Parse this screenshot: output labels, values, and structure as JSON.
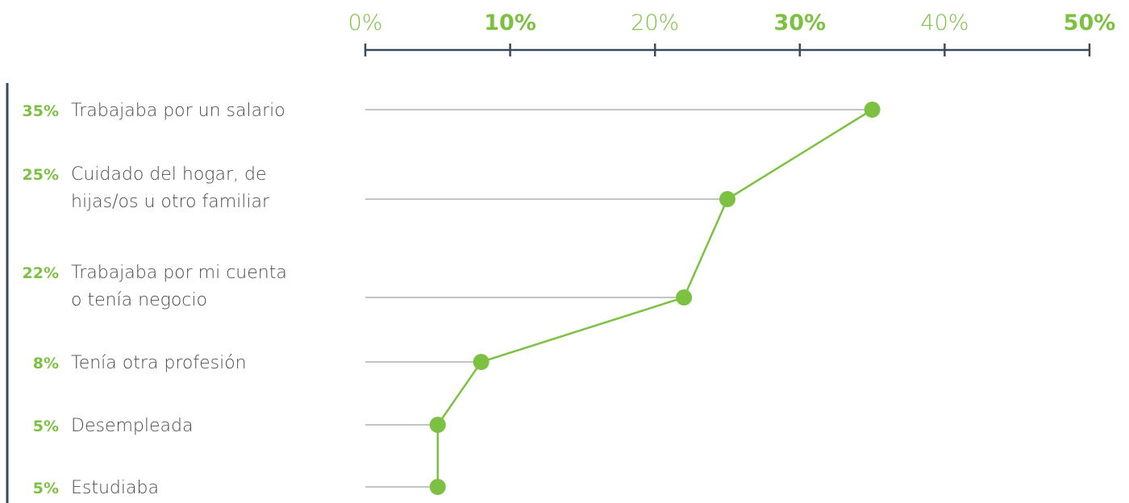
{
  "colors": {
    "accent": "#7cc142",
    "axis": "#3a4a5a",
    "guide": "#c4c4c4",
    "label": "#4a4a4a"
  },
  "chart_data": {
    "type": "line",
    "orientation": "horizontal",
    "xlim": [
      0,
      50
    ],
    "x_ticks": [
      {
        "value": 0,
        "label": "0%",
        "bold": false
      },
      {
        "value": 10,
        "label": "10%",
        "bold": true
      },
      {
        "value": 20,
        "label": "20%",
        "bold": false
      },
      {
        "value": 30,
        "label": "30%",
        "bold": true
      },
      {
        "value": 40,
        "label": "40%",
        "bold": false
      },
      {
        "value": 50,
        "label": "50%",
        "bold": true
      }
    ],
    "rows": [
      {
        "value": 35,
        "value_label": "35%",
        "label_lines": [
          "Trabajaba por un salario"
        ]
      },
      {
        "value": 25,
        "value_label": "25%",
        "label_lines": [
          "Cuidado del hogar, de",
          "hijas/os u otro familiar"
        ]
      },
      {
        "value": 22,
        "value_label": "22%",
        "label_lines": [
          "Trabajaba por mi cuenta",
          "o tenía negocio"
        ]
      },
      {
        "value": 8,
        "value_label": "8%",
        "label_lines": [
          "Tenía otra profesión"
        ]
      },
      {
        "value": 5,
        "value_label": "5%",
        "label_lines": [
          "Desempleada"
        ]
      },
      {
        "value": 5,
        "value_label": "5%",
        "label_lines": [
          "Estudiaba"
        ]
      }
    ],
    "grid": false,
    "legend": "none"
  }
}
